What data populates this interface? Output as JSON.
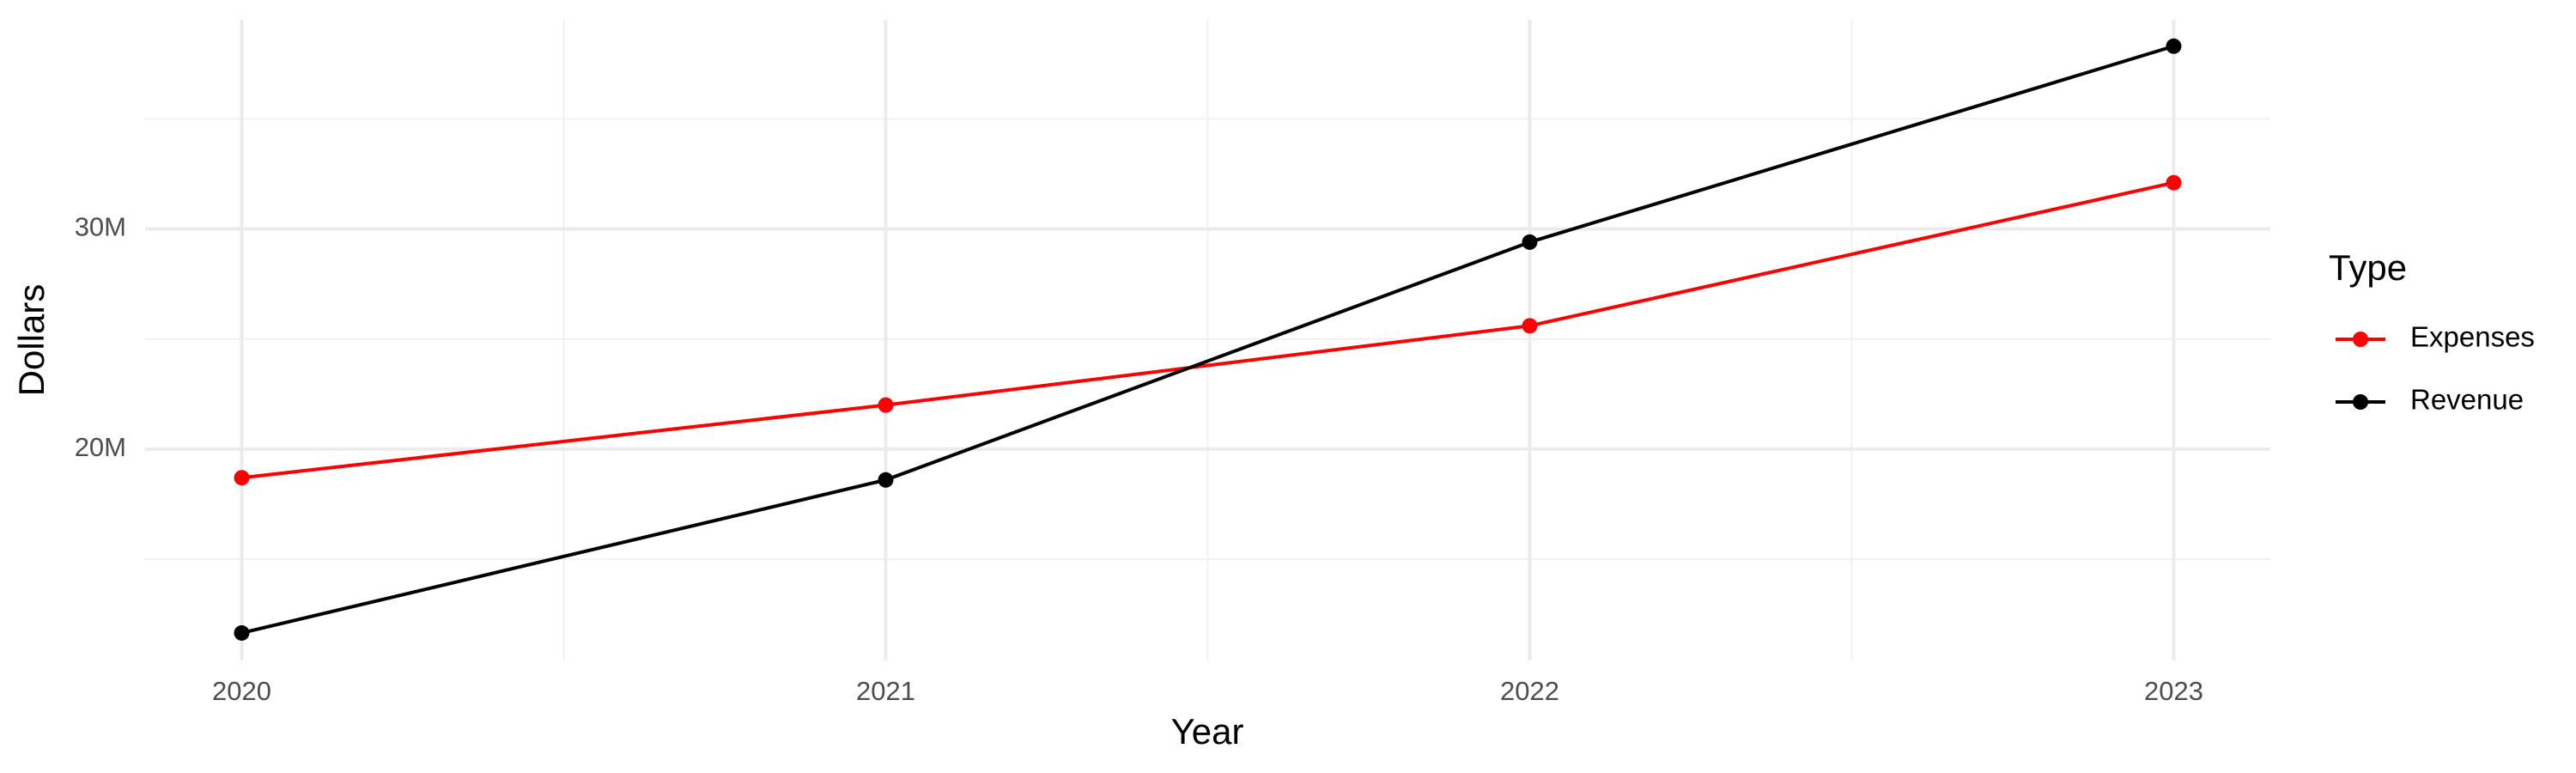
{
  "chart_data": {
    "type": "line",
    "x_label": "Year",
    "y_label": "Dollars",
    "x": [
      2020,
      2021,
      2022,
      2023
    ],
    "series": [
      {
        "name": "Expenses",
        "color": "#ff0000",
        "values": [
          18700000,
          22000000,
          25600000,
          32100000
        ]
      },
      {
        "name": "Revenue",
        "color": "#000000",
        "values": [
          11650000,
          18600000,
          29400000,
          38300000
        ]
      }
    ],
    "xlim": [
      2019.85,
      2023.15
    ],
    "xticks": [
      2020,
      2021,
      2022,
      2023
    ],
    "ylim": [
      10400000,
      39500000
    ],
    "yticks": [
      {
        "value": 20000000,
        "label": "20M"
      },
      {
        "value": 30000000,
        "label": "30M"
      }
    ],
    "grid": true,
    "legend_title": "Type",
    "legend_position": "right"
  }
}
